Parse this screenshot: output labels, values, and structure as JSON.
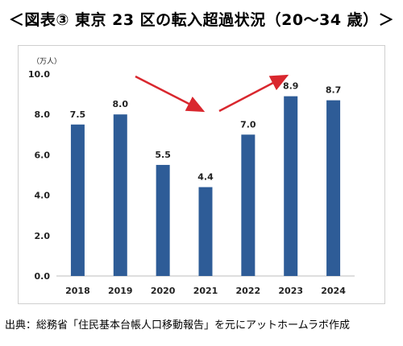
{
  "title": "＜図表③ 東京 23 区の転入超過状況（20～34 歳）＞",
  "source": "出典：総務省「住民基本台帳人口移動報告」を元にアットホームラボ作成",
  "chart_data": {
    "type": "bar",
    "unit_label": "（万人）",
    "categories": [
      "2018",
      "2019",
      "2020",
      "2021",
      "2022",
      "2023",
      "2024"
    ],
    "values": [
      7.5,
      8.0,
      5.5,
      4.4,
      7.0,
      8.9,
      8.7
    ],
    "value_labels": [
      "7.5",
      "8.0",
      "5.5",
      "4.4",
      "7.0",
      "8.9",
      "8.7"
    ],
    "ylim": [
      0,
      10
    ],
    "yticks": [
      "0.0",
      "2.0",
      "4.0",
      "6.0",
      "8.0",
      "10.0"
    ],
    "grid": false,
    "bar_color": "#2e5c97",
    "arrow_color": "#d9272e"
  }
}
